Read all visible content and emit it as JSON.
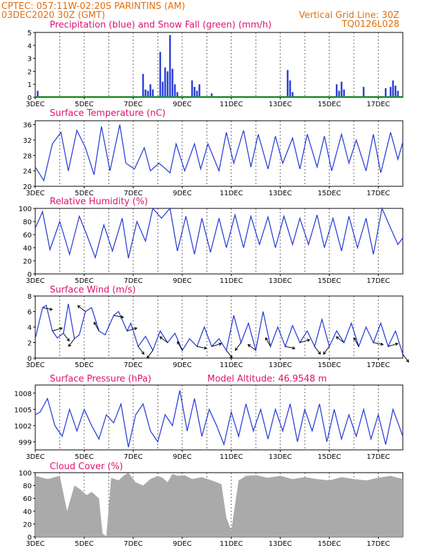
{
  "header": {
    "line1": "CPTEC:   057:11W-02:20S   PARINTINS (AM)",
    "line2": "03DEC2020 30Z (GMT)",
    "grid_note": "Vertical Grid Line: 30Z",
    "code": "TQ0126L028"
  },
  "colors": {
    "header": "#e07010",
    "panel_title": "#e0106e",
    "line": "#2a3fd6",
    "snow": "#22a32a",
    "cloud": "#aaaaaa"
  },
  "time_axis": {
    "start_day": 3,
    "end_day": 18,
    "labels": [
      "3DEC",
      "5DEC",
      "7DEC",
      "9DEC",
      "11DEC",
      "13DEC",
      "15DEC",
      "17DEC"
    ]
  },
  "panels": {
    "precip": {
      "title": "Precipitation (blue) and Snow Fall (green) (mm/h)"
    },
    "temp": {
      "title": "Surface Temperature (nC)"
    },
    "rh": {
      "title": "Relative Humidity (%)"
    },
    "wind": {
      "title": "Surface Wind (m/s)"
    },
    "pressure": {
      "title": "Surface Pressure (hPa)",
      "altitude_note": "Model Altitude: 46.9548 m"
    },
    "cloud": {
      "title": "Cloud Cover (%)"
    }
  },
  "chart_data": [
    {
      "type": "bar",
      "title": "Precipitation (blue) and Snow Fall (green) (mm/h)",
      "x_unit": "day of December 2020",
      "ylim": [
        0,
        5
      ],
      "y_ticks": [
        0,
        1,
        2,
        3,
        4,
        5
      ],
      "x": [
        3.1,
        7.4,
        7.5,
        7.6,
        7.7,
        7.8,
        8.1,
        8.2,
        8.3,
        8.4,
        8.5,
        8.6,
        8.7,
        8.8,
        9.4,
        9.5,
        9.6,
        9.7,
        10.2,
        13.3,
        13.4,
        13.5,
        15.3,
        15.4,
        15.5,
        15.6,
        16.4,
        17.3,
        17.5,
        17.6,
        17.7,
        17.8
      ],
      "values": [
        0.5,
        1.8,
        0.6,
        0.5,
        1.0,
        0.6,
        3.5,
        1.2,
        2.3,
        2.0,
        4.8,
        2.2,
        1.0,
        0.4,
        1.3,
        0.8,
        0.5,
        1.0,
        0.3,
        2.1,
        1.3,
        0.4,
        1.0,
        0.5,
        1.2,
        0.6,
        0.8,
        0.7,
        0.8,
        1.3,
        0.9,
        0.5
      ],
      "snow_values": []
    },
    {
      "type": "line",
      "title": "Surface Temperature (nC)",
      "ylim": [
        20,
        37
      ],
      "y_ticks": [
        20,
        24,
        28,
        32,
        36
      ],
      "x": [
        3.0,
        3.35,
        3.7,
        4.05,
        4.35,
        4.7,
        5.05,
        5.4,
        5.7,
        6.05,
        6.45,
        6.7,
        7.05,
        7.45,
        7.7,
        8.05,
        8.5,
        8.75,
        9.1,
        9.5,
        9.75,
        10.05,
        10.5,
        10.8,
        11.1,
        11.5,
        11.8,
        12.1,
        12.5,
        12.8,
        13.1,
        13.5,
        13.8,
        14.1,
        14.5,
        14.8,
        15.1,
        15.5,
        15.8,
        16.1,
        16.5,
        16.8,
        17.1,
        17.5,
        17.8,
        18.0
      ],
      "values": [
        25,
        21.5,
        31,
        34,
        24,
        34.5,
        30,
        23,
        35.5,
        24,
        36,
        26,
        24.5,
        30,
        24,
        26,
        23.5,
        31,
        24,
        31,
        24.5,
        31,
        24,
        34,
        26,
        34.5,
        25,
        33.5,
        24.5,
        33,
        26,
        32.5,
        24.5,
        33.5,
        25,
        33,
        24,
        33.5,
        26,
        32,
        24,
        33.5,
        23.5,
        34,
        27,
        31.5
      ]
    },
    {
      "type": "line",
      "title": "Relative Humidity (%)",
      "ylim": [
        0,
        100
      ],
      "y_ticks": [
        0,
        20,
        40,
        60,
        80,
        100
      ],
      "x": [
        3.0,
        3.3,
        3.6,
        4.0,
        4.4,
        4.8,
        5.1,
        5.45,
        5.8,
        6.15,
        6.55,
        6.8,
        7.15,
        7.5,
        7.8,
        8.15,
        8.5,
        8.8,
        9.15,
        9.5,
        9.8,
        10.15,
        10.5,
        10.8,
        11.15,
        11.5,
        11.8,
        12.15,
        12.5,
        12.8,
        13.15,
        13.5,
        13.8,
        14.15,
        14.5,
        14.8,
        15.15,
        15.5,
        15.8,
        16.15,
        16.5,
        16.8,
        17.15,
        17.5,
        17.8,
        18.0
      ],
      "values": [
        70,
        95,
        37,
        80,
        30,
        88,
        60,
        25,
        75,
        35,
        85,
        24,
        80,
        50,
        100,
        85,
        100,
        35,
        88,
        30,
        85,
        33,
        85,
        40,
        90,
        40,
        88,
        45,
        87,
        40,
        88,
        45,
        85,
        45,
        90,
        40,
        85,
        35,
        88,
        40,
        85,
        30,
        100,
        70,
        45,
        55
      ]
    },
    {
      "type": "line",
      "title": "Surface Wind (m/s)",
      "ylim": [
        0,
        8
      ],
      "y_ticks": [
        0,
        2,
        4,
        6,
        8
      ],
      "x": [
        3.0,
        3.3,
        3.45,
        3.7,
        3.9,
        4.15,
        4.35,
        4.6,
        4.8,
        5.05,
        5.3,
        5.6,
        5.85,
        6.2,
        6.4,
        6.75,
        6.9,
        7.2,
        7.5,
        7.8,
        8.1,
        8.4,
        8.7,
        9.0,
        9.3,
        9.6,
        9.9,
        10.2,
        10.5,
        10.8,
        11.1,
        11.4,
        11.7,
        12.0,
        12.3,
        12.6,
        12.9,
        13.2,
        13.5,
        13.8,
        14.1,
        14.4,
        14.7,
        15.0,
        15.3,
        15.6,
        15.9,
        16.2,
        16.5,
        16.8,
        17.1,
        17.4,
        17.7,
        18.0
      ],
      "values": [
        2.5,
        6.5,
        6.8,
        3.5,
        2.6,
        3.2,
        7.0,
        2.5,
        3.0,
        6.0,
        6.5,
        3.5,
        3.0,
        5.5,
        6.0,
        3.5,
        4.5,
        1.5,
        2.8,
        1.0,
        3.5,
        2.0,
        3.2,
        1.0,
        2.5,
        1.5,
        4.0,
        1.5,
        2.5,
        1.0,
        5.5,
        2.0,
        4.5,
        1.0,
        6.0,
        1.5,
        4.0,
        1.5,
        4.2,
        2.0,
        3.5,
        1.5,
        5.0,
        1.5,
        3.5,
        2.0,
        4.5,
        1.5,
        4.0,
        2.0,
        4.5,
        1.5,
        3.5,
        0.5
      ],
      "arrows_note": "wind direction vectors drawn along series"
    },
    {
      "type": "line",
      "title": "Surface Pressure (hPa)",
      "ylim": [
        997.5,
        1009.5
      ],
      "y_ticks": [
        999,
        1002,
        1005,
        1008
      ],
      "x": [
        3.0,
        3.2,
        3.5,
        3.8,
        4.1,
        4.4,
        4.7,
        5.0,
        5.3,
        5.6,
        5.9,
        6.2,
        6.5,
        6.8,
        7.1,
        7.4,
        7.7,
        8.0,
        8.3,
        8.6,
        8.9,
        9.2,
        9.5,
        9.8,
        10.1,
        10.4,
        10.7,
        11.0,
        11.3,
        11.6,
        11.9,
        12.2,
        12.5,
        12.8,
        13.1,
        13.4,
        13.7,
        14.0,
        14.3,
        14.6,
        14.9,
        15.2,
        15.5,
        15.8,
        16.1,
        16.4,
        16.7,
        17.0,
        17.3,
        17.6,
        18.0
      ],
      "values": [
        1004,
        1004.5,
        1007,
        1002,
        1000,
        1005,
        1001,
        1005,
        1002,
        999.5,
        1004,
        1002.5,
        1006,
        998,
        1004,
        1006,
        1001,
        999,
        1004,
        1002,
        1008.5,
        1001,
        1007,
        1000,
        1005,
        1002,
        998.5,
        1004.5,
        1000,
        1006,
        1001,
        1005,
        999.5,
        1005,
        1001,
        1006,
        999,
        1005,
        1001,
        1006,
        999,
        1005,
        999.5,
        1004,
        1000,
        1005,
        999.5,
        1004,
        998.5,
        1005,
        1000
      ]
    },
    {
      "type": "area",
      "title": "Cloud Cover (%)",
      "ylim": [
        0,
        100
      ],
      "y_ticks": [
        0,
        20,
        40,
        60,
        80,
        100
      ],
      "x": [
        3.0,
        3.5,
        4.0,
        4.3,
        4.6,
        4.8,
        5.1,
        5.3,
        5.6,
        5.75,
        5.9,
        6.1,
        6.4,
        6.6,
        6.8,
        7.1,
        7.4,
        7.7,
        8.0,
        8.2,
        8.4,
        8.6,
        8.8,
        9.1,
        9.4,
        9.8,
        10.2,
        10.6,
        10.8,
        11.0,
        11.3,
        11.6,
        12.0,
        12.5,
        13.0,
        13.5,
        14.0,
        14.5,
        15.0,
        15.5,
        16.0,
        16.5,
        17.0,
        17.5,
        18.0
      ],
      "values": [
        95,
        90,
        95,
        40,
        80,
        75,
        65,
        70,
        60,
        5,
        1,
        92,
        88,
        95,
        100,
        85,
        80,
        90,
        95,
        92,
        85,
        98,
        95,
        96,
        90,
        93,
        88,
        82,
        30,
        10,
        88,
        95,
        96,
        92,
        95,
        90,
        93,
        90,
        88,
        93,
        90,
        88,
        92,
        95,
        90
      ]
    }
  ]
}
